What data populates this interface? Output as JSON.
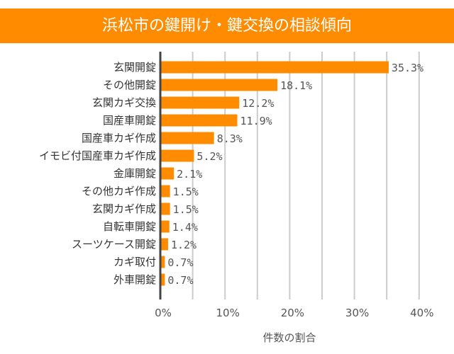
{
  "title": "浜松市の鍵開け・鍵交換の相談傾向",
  "chart_data": {
    "type": "bar",
    "orientation": "horizontal",
    "title": "浜松市の鍵開け・鍵交換の相談傾向",
    "xlabel": "件数の割合",
    "ylabel": "",
    "xlim": [
      0,
      40
    ],
    "xticks": [
      "0%",
      "10%",
      "20%",
      "30%",
      "40%"
    ],
    "grid": true,
    "bar_color": "#ff8c00",
    "categories": [
      "玄関開錠",
      "その他開錠",
      "玄関カギ交換",
      "国産車開錠",
      "国産車カギ作成",
      "イモビ付国産車カギ作成",
      "金庫開錠",
      "その他カギ作成",
      "玄関カギ作成",
      "自転車開錠",
      "スーツケース開錠",
      "カギ取付",
      "外車開錠"
    ],
    "values": [
      35.3,
      18.1,
      12.2,
      11.9,
      8.3,
      5.2,
      2.1,
      1.5,
      1.5,
      1.4,
      1.2,
      0.7,
      0.7
    ]
  }
}
